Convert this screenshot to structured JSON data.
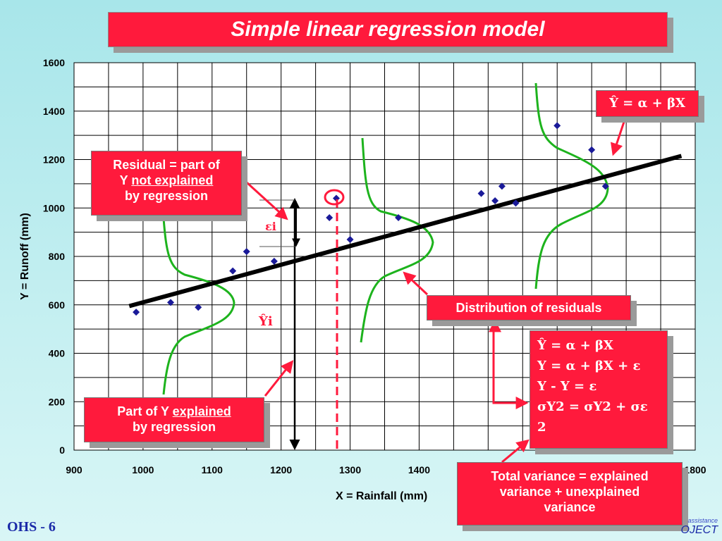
{
  "title": "Simple linear regression model",
  "footer": "OHS - 6",
  "logo": {
    "top": "assistance",
    "bottom": "OJECT"
  },
  "annotations": {
    "residual_box": {
      "line1": "Residual = part of",
      "line2_pre": "Y ",
      "line2_u": "not explained",
      "line3": "by regression"
    },
    "explained_box": {
      "line1_pre": "Part of Y ",
      "line1_u": "explained",
      "line2": "by regression"
    },
    "dist_box": "Distribution of residuals",
    "model_box": "Ŷ = α + βX",
    "total_box": {
      "line1": "Total variance = explained",
      "line2": "variance + unexplained",
      "line3": "variance"
    },
    "equations": [
      "Ŷ = α + βX",
      "Y = α + βX + ε",
      "Y - Y = ε",
      "σY2 = σY2 + σε 2"
    ],
    "eps_label": "εi",
    "yhat_label": "Ŷi"
  },
  "colors": {
    "red": "#ff1a3c",
    "green": "#1db31d",
    "point": "#1a1a99",
    "line": "#000000"
  },
  "chart_data": {
    "type": "scatter",
    "title": "",
    "xlabel": "X =  Rainfall (mm)",
    "ylabel": "Y = Runoff (mm)",
    "xlim": [
      900,
      1800
    ],
    "ylim": [
      0,
      1600
    ],
    "x_ticks": [
      "900",
      "1000",
      "1100",
      "1200",
      "1300",
      "1400",
      "1800"
    ],
    "y_ticks": [
      "0",
      "200",
      "400",
      "600",
      "800",
      "1000",
      "1200",
      "1400",
      "1600"
    ],
    "points": [
      [
        990,
        570
      ],
      [
        1040,
        610
      ],
      [
        1080,
        590
      ],
      [
        1130,
        740
      ],
      [
        1150,
        820
      ],
      [
        1190,
        780
      ],
      [
        1270,
        960
      ],
      [
        1280,
        1040
      ],
      [
        1300,
        870
      ],
      [
        1370,
        960
      ],
      [
        1490,
        1060
      ],
      [
        1510,
        1030
      ],
      [
        1520,
        1090
      ],
      [
        1540,
        1020
      ],
      [
        1600,
        1340
      ],
      [
        1650,
        1240
      ],
      [
        1670,
        1090
      ]
    ],
    "regression_line": {
      "x": [
        980,
        1780
      ],
      "y": [
        595,
        1215
      ]
    },
    "grid": true
  }
}
